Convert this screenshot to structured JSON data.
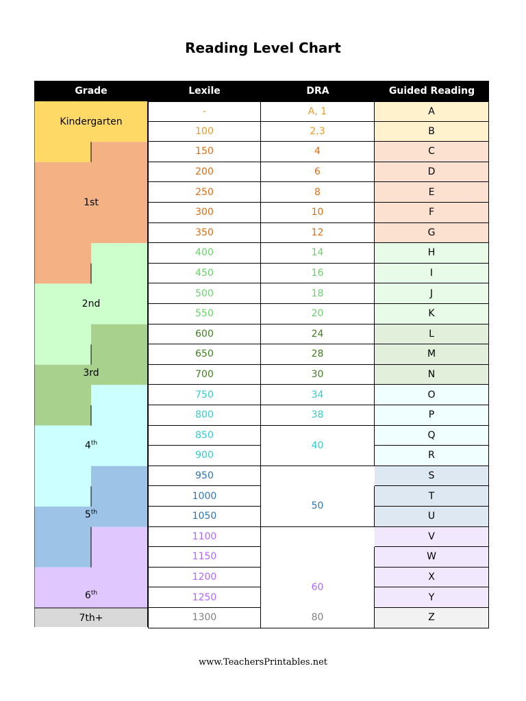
{
  "title": "Reading Level Chart",
  "footer": "www.TeachersPrintables.net",
  "headers": {
    "grade": "Grade",
    "lexile": "Lexile",
    "dra": "DRA",
    "guided": "Guided Reading"
  },
  "grade_colors": {
    "Kindergarten": "#ffd966",
    "1st": "#f4b183",
    "2nd": "#ccffcc",
    "3rd": "#a9d18e",
    "4th": "#ccffff",
    "5th": "#9dc3e6",
    "6th": "#e0c8ff",
    "7th+": "#d9d9d9"
  },
  "grades": [
    {
      "label": "Kindergarten",
      "sup": ""
    },
    {
      "label": "1st",
      "sup": ""
    },
    {
      "label": "2nd",
      "sup": ""
    },
    {
      "label": "3rd",
      "sup": ""
    },
    {
      "label": "4",
      "sup": "th"
    },
    {
      "label": "5",
      "sup": "th"
    },
    {
      "label": "6",
      "sup": "th"
    },
    {
      "label": "7th+",
      "sup": ""
    }
  ],
  "band_colors": {
    "K": {
      "text": "#e69c28",
      "bg": "#fff2cc"
    },
    "G1": {
      "text": "#e06c10",
      "bg": "#fce0d0"
    },
    "G2": {
      "text": "#66d466",
      "bg": "#e8fbe8"
    },
    "G3": {
      "text": "#3f7f1f",
      "bg": "#e2efda"
    },
    "G4": {
      "text": "#33cccc",
      "bg": "#f0ffff"
    },
    "G5": {
      "text": "#2e75b6",
      "bg": "#dde8f3"
    },
    "G6": {
      "text": "#b266ff",
      "bg": "#f1e8fd"
    },
    "G7": {
      "text": "#808080",
      "bg": "#f2f2f2"
    }
  },
  "rows": [
    {
      "lexile": "-",
      "dra": "A, 1",
      "guided": "A",
      "band": "K"
    },
    {
      "lexile": "100",
      "dra": "2,3",
      "guided": "B",
      "band": "K"
    },
    {
      "lexile": "150",
      "dra": "4",
      "guided": "C",
      "band": "G1"
    },
    {
      "lexile": "200",
      "dra": "6",
      "guided": "D",
      "band": "G1"
    },
    {
      "lexile": "250",
      "dra": "8",
      "guided": "E",
      "band": "G1"
    },
    {
      "lexile": "300",
      "dra": "10",
      "guided": "F",
      "band": "G1"
    },
    {
      "lexile": "350",
      "dra": "12",
      "guided": "G",
      "band": "G1"
    },
    {
      "lexile": "400",
      "dra": "14",
      "guided": "H",
      "band": "G2"
    },
    {
      "lexile": "450",
      "dra": "16",
      "guided": "I",
      "band": "G2"
    },
    {
      "lexile": "500",
      "dra": "18",
      "guided": "J",
      "band": "G2"
    },
    {
      "lexile": "550",
      "dra": "20",
      "guided": "K",
      "band": "G2"
    },
    {
      "lexile": "600",
      "dra": "24",
      "guided": "L",
      "band": "G3"
    },
    {
      "lexile": "650",
      "dra": "28",
      "guided": "M",
      "band": "G3"
    },
    {
      "lexile": "700",
      "dra": "30",
      "guided": "N",
      "band": "G3"
    },
    {
      "lexile": "750",
      "dra": "34",
      "guided": "O",
      "band": "G4"
    },
    {
      "lexile": "800",
      "dra": "38",
      "guided": "P",
      "band": "G4"
    },
    {
      "lexile": "850",
      "dra": "40",
      "guided": "Q",
      "band": "G4"
    },
    {
      "lexile": "900",
      "dra": "",
      "guided": "R",
      "band": "G4"
    },
    {
      "lexile": "950",
      "dra": "",
      "guided": "S",
      "band": "G5"
    },
    {
      "lexile": "1000",
      "dra": "50",
      "guided": "T",
      "band": "G5"
    },
    {
      "lexile": "1050",
      "dra": "",
      "guided": "U",
      "band": "G5"
    },
    {
      "lexile": "1100",
      "dra": "",
      "guided": "V",
      "band": "G6"
    },
    {
      "lexile": "1150",
      "dra": "60",
      "guided": "W",
      "band": "G6"
    },
    {
      "lexile": "1200",
      "dra": "",
      "guided": "X",
      "band": "G6"
    },
    {
      "lexile": "1250",
      "dra": "",
      "guided": "Y",
      "band": "G6"
    },
    {
      "lexile": "1300",
      "dra": "80",
      "guided": "Z",
      "band": "G7"
    }
  ]
}
